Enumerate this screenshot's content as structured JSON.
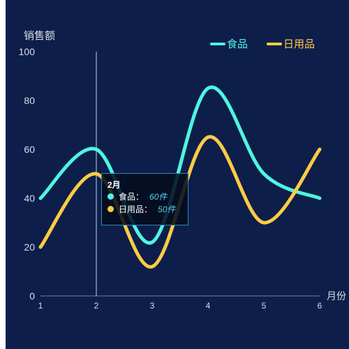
{
  "chart_data": {
    "type": "line",
    "smooth": true,
    "categories": [
      "1",
      "2",
      "3",
      "4",
      "5",
      "6"
    ],
    "xlabel": "月份",
    "ylabel": "销售额",
    "ylim": [
      0,
      100
    ],
    "yticks": [
      0,
      20,
      40,
      60,
      80,
      100
    ],
    "legend_position": "top-right",
    "background": "#0e1e4a",
    "series": [
      {
        "name": "食品",
        "color": "#4ff5e0",
        "values": [
          40,
          60,
          22,
          85,
          50,
          40
        ]
      },
      {
        "name": "日用品",
        "color": "#ffcc44",
        "values": [
          20,
          50,
          12,
          65,
          30,
          60
        ]
      }
    ]
  },
  "tooltip": {
    "title": "2月",
    "rows": [
      {
        "label": "食品：",
        "value": "60件",
        "color": "#4ff5e0"
      },
      {
        "label": "日用品：",
        "value": "50件",
        "color": "#ffcc44"
      }
    ]
  }
}
